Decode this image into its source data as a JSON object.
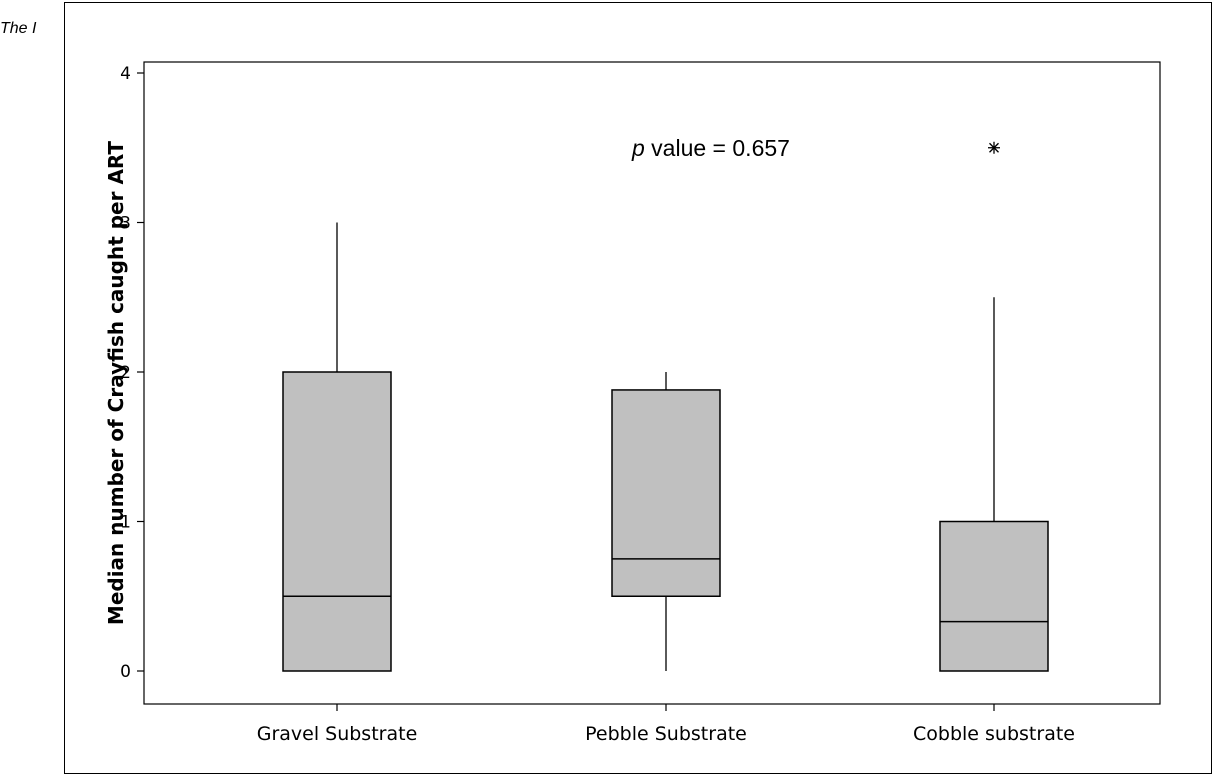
{
  "caption": "The I",
  "chart_data": {
    "type": "boxplot",
    "title": "",
    "xlabel": "",
    "ylabel": "Median number of Crayfish caught per ART",
    "ylim": [
      -0.2,
      4.05
    ],
    "yticks": [
      0,
      1,
      2,
      3,
      4
    ],
    "grid": false,
    "categories": [
      "Gravel Substrate",
      "Pebble Substrate",
      "Cobble substrate"
    ],
    "boxes": [
      {
        "category": "Gravel Substrate",
        "whisker_low": 0,
        "q1": 0,
        "median": 0.5,
        "q3": 2.0,
        "whisker_high": 3.0,
        "outliers": []
      },
      {
        "category": "Pebble Substrate",
        "whisker_low": 0,
        "q1": 0.5,
        "median": 0.75,
        "q3": 1.88,
        "whisker_high": 2.0,
        "outliers": []
      },
      {
        "category": "Cobble substrate",
        "whisker_low": 0,
        "q1": 0,
        "median": 0.33,
        "q3": 1.0,
        "whisker_high": 2.5,
        "outliers": [
          3.5
        ]
      }
    ],
    "annotation": {
      "italic": "p",
      "text": " value = 0.657"
    },
    "box_fill": "#c0c0c0",
    "line_color": "#000000"
  }
}
